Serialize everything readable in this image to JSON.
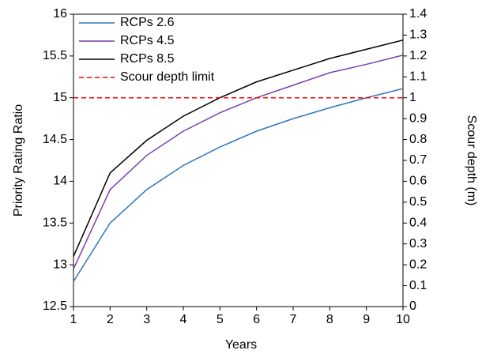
{
  "chart_data": {
    "type": "line",
    "x_label": "Years",
    "y_label": "Priority Rating Ratio",
    "y2_label": "Scour depth (m)",
    "x": [
      1,
      2,
      3,
      4,
      5,
      6,
      7,
      8,
      9,
      10
    ],
    "xlim": [
      1,
      10
    ],
    "xticks": [
      1,
      2,
      3,
      4,
      5,
      6,
      7,
      8,
      9,
      10
    ],
    "ylim": [
      12.5,
      16
    ],
    "yticks": [
      12.5,
      13,
      13.5,
      14,
      14.5,
      15,
      15.5,
      16
    ],
    "y2lim": [
      0,
      1.4
    ],
    "y2ticks": [
      0,
      0.1,
      0.2,
      0.3,
      0.4,
      0.5,
      0.6,
      0.7,
      0.8,
      0.9,
      1,
      1.1,
      1.2,
      1.3,
      1.4
    ],
    "legend": "upper left",
    "series": [
      {
        "name": "RCPs 2.6",
        "color": "#2e75c0",
        "values": [
          12.8,
          13.5,
          13.9,
          14.19,
          14.41,
          14.6,
          14.75,
          14.88,
          15.0,
          15.11
        ]
      },
      {
        "name": "RCPs 4.5",
        "color": "#7c3fb0",
        "values": [
          12.95,
          13.9,
          14.31,
          14.6,
          14.82,
          15.0,
          15.15,
          15.3,
          15.4,
          15.51
        ]
      },
      {
        "name": "RCPs 8.5",
        "color": "#000000",
        "values": [
          13.1,
          14.1,
          14.49,
          14.78,
          15.0,
          15.19,
          15.33,
          15.47,
          15.58,
          15.69
        ]
      },
      {
        "name": "Scour depth limit",
        "color": "#ff0000",
        "dashed": true,
        "axis": "y2",
        "values": [
          1,
          1,
          1,
          1,
          1,
          1,
          1,
          1,
          1,
          1
        ]
      }
    ]
  }
}
